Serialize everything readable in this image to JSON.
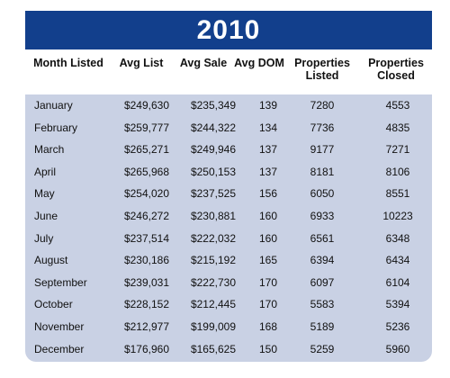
{
  "table": {
    "title": "2010",
    "headers": [
      "Month Listed",
      "Avg List",
      "Avg Sale",
      "Avg DOM",
      "Properties Listed",
      "Properties Closed"
    ],
    "rows": [
      [
        "January",
        "$249,630",
        "$235,349",
        "139",
        "7280",
        "4553"
      ],
      [
        "February",
        "$259,777",
        "$244,322",
        "134",
        "7736",
        "4835"
      ],
      [
        "March",
        "$265,271",
        "$249,946",
        "137",
        "9177",
        "7271"
      ],
      [
        "April",
        "$265,968",
        "$250,153",
        "137",
        "8181",
        "8106"
      ],
      [
        "May",
        "$254,020",
        "$237,525",
        "156",
        "6050",
        "8551"
      ],
      [
        "June",
        "$246,272",
        "$230,881",
        "160",
        "6933",
        "10223"
      ],
      [
        "July",
        "$237,514",
        "$222,032",
        "160",
        "6561",
        "6348"
      ],
      [
        "August",
        "$230,186",
        "$215,192",
        "165",
        "6394",
        "6434"
      ],
      [
        "September",
        "$239,031",
        "$222,730",
        "170",
        "6097",
        "6104"
      ],
      [
        "October",
        "$228,152",
        "$212,445",
        "170",
        "5583",
        "5394"
      ],
      [
        "November",
        "$212,977",
        "$199,009",
        "168",
        "5189",
        "5236"
      ],
      [
        "December",
        "$176,960",
        "$165,625",
        "150",
        "5259",
        "5960"
      ]
    ]
  }
}
